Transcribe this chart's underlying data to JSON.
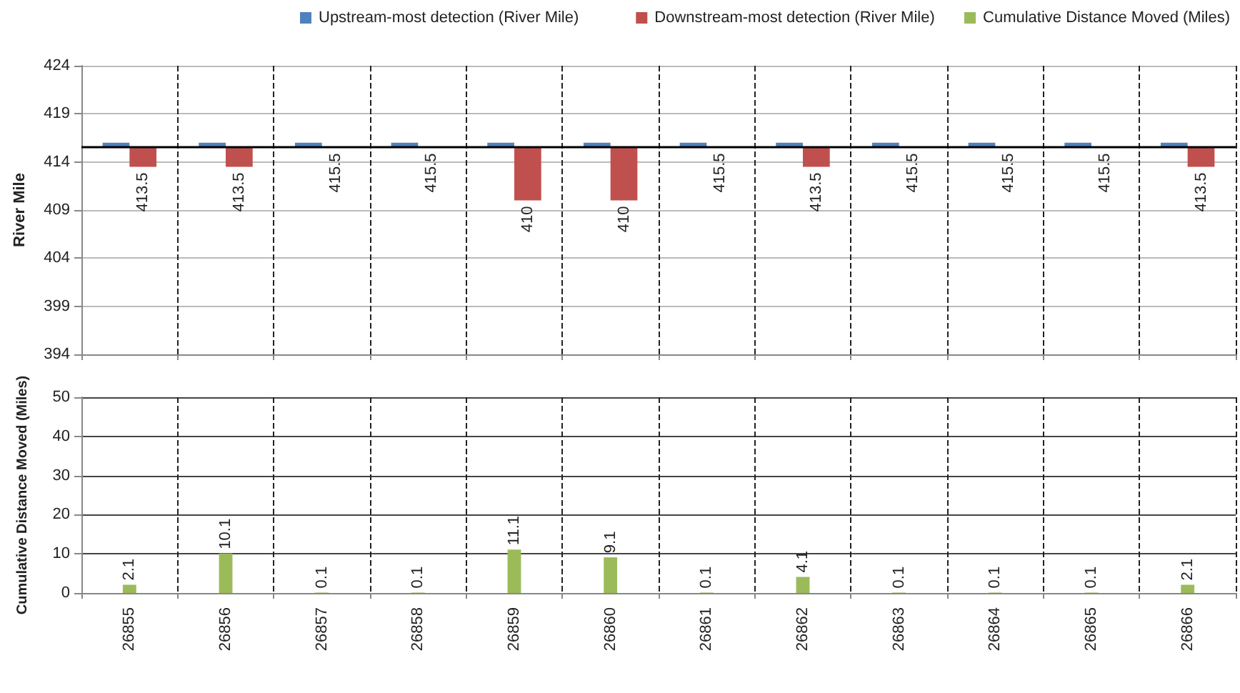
{
  "chart_data": [
    {
      "type": "bar",
      "ylabel": "River Mile",
      "categories": [
        "26855",
        "26856",
        "26857",
        "26858",
        "26859",
        "26860",
        "26861",
        "26862",
        "26863",
        "26864",
        "26865",
        "26866"
      ],
      "series": [
        {
          "name": "Upstream-most detection (River Mile)",
          "color": "#4f81bd",
          "base": [
            415.5,
            415.5,
            415.5,
            415.5,
            415.5,
            415.5,
            415.5,
            415.5,
            415.5,
            415.5,
            415.5,
            415.5
          ],
          "values": [
            0.5,
            0.5,
            0.5,
            0.5,
            0.5,
            0.5,
            0.5,
            0.5,
            0.5,
            0.5,
            0.5,
            0.5
          ]
        },
        {
          "name": "Downstream-most detection (River Mile)",
          "color": "#c0504d",
          "base": [
            415.5,
            415.5,
            null,
            null,
            415.5,
            415.5,
            null,
            415.5,
            null,
            null,
            null,
            415.5
          ],
          "values": [
            -2,
            -2,
            null,
            null,
            -5.5,
            -5.5,
            null,
            -2,
            null,
            null,
            null,
            -2
          ],
          "value_labels": [
            "413.5",
            "413.5",
            "415.5",
            "415.5",
            "410",
            "410",
            "415.5",
            "413.5",
            "415.5",
            "415.5",
            "415.5",
            "413.5"
          ]
        }
      ],
      "ylim": [
        394,
        424
      ],
      "yticks": [
        394,
        399,
        404,
        409,
        414,
        419,
        424
      ],
      "ref_lines": [
        {
          "axis": "y",
          "value": 415.5,
          "color": "#000000"
        }
      ],
      "grid": true,
      "legend": "top",
      "tick_labels": "y"
    },
    {
      "type": "bar",
      "ylabel": "Cumulative Distance Moved (Miles)",
      "categories": [
        "26855",
        "26856",
        "26857",
        "26858",
        "26859",
        "26860",
        "26861",
        "26862",
        "26863",
        "26864",
        "26865",
        "26866"
      ],
      "series": [
        {
          "name": "Cumulative Distance Moved (Miles)",
          "color": "#9bbb59",
          "values": [
            2.1,
            10.1,
            0.1,
            0.1,
            11.1,
            9.1,
            0.1,
            4.1,
            0.1,
            0.1,
            0.1,
            2.1
          ]
        }
      ],
      "ylim": [
        0,
        50
      ],
      "yticks": [
        0,
        10,
        20,
        30,
        40,
        50
      ],
      "data_labels": true,
      "grid": true,
      "legend": "top right"
    }
  ]
}
